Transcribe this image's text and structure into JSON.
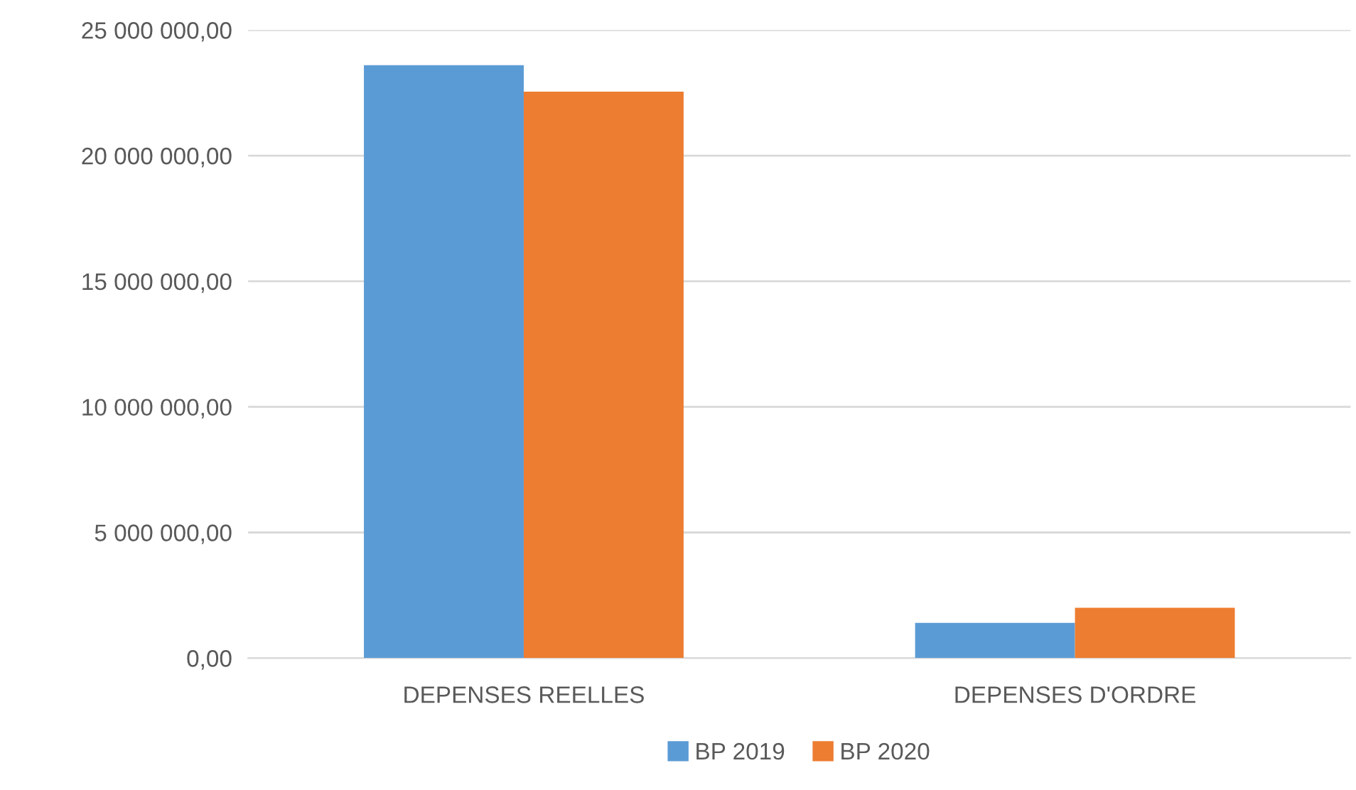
{
  "chart_data": {
    "type": "bar",
    "categories": [
      "DEPENSES REELLES",
      "DEPENSES D'ORDRE"
    ],
    "series": [
      {
        "name": "BP 2019",
        "color": "#5b9bd5",
        "values": [
          23600000,
          1400000
        ]
      },
      {
        "name": "BP 2020",
        "color": "#ed7d31",
        "values": [
          22550000,
          2000000
        ]
      }
    ],
    "ylim": [
      0,
      25000000
    ],
    "yticks": [
      {
        "value": 0,
        "label": "0,00"
      },
      {
        "value": 5000000,
        "label": "5 000 000,00"
      },
      {
        "value": 10000000,
        "label": "10 000 000,00"
      },
      {
        "value": 15000000,
        "label": "15 000 000,00"
      },
      {
        "value": 20000000,
        "label": "20 000 000,00"
      },
      {
        "value": 25000000,
        "label": "25 000 000,00"
      }
    ],
    "grid": "y",
    "legend": "bottom"
  }
}
